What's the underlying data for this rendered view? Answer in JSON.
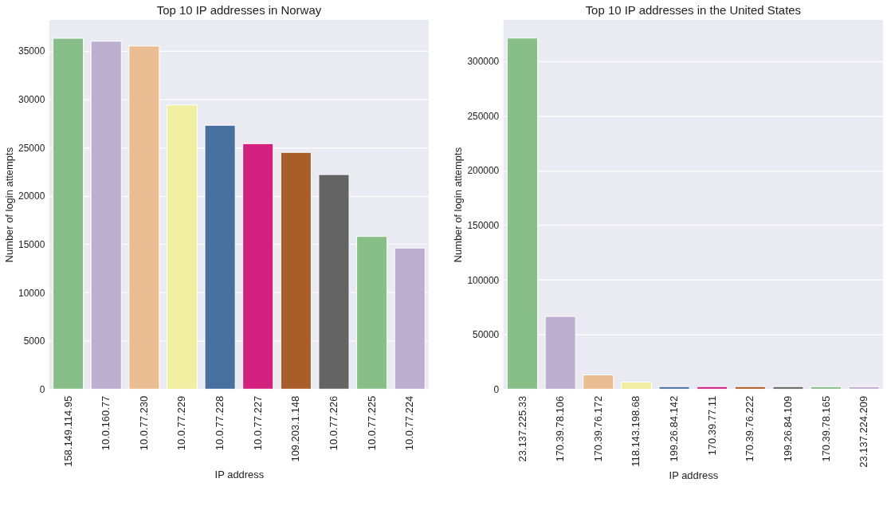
{
  "chart_data": [
    {
      "type": "bar",
      "title": "Top 10 IP addresses in Norway",
      "xlabel": "IP address",
      "ylabel": "Number of login attempts",
      "categories": [
        "158.149.114.95",
        "10.0.160.77",
        "10.0.77.230",
        "10.0.77.229",
        "10.0.77.228",
        "10.0.77.227",
        "109.203.1.148",
        "10.0.77.226",
        "10.0.77.225",
        "10.0.77.224"
      ],
      "values": [
        36300,
        36000,
        35500,
        29400,
        27300,
        25400,
        24500,
        22200,
        15800,
        14600
      ],
      "colors": [
        "#88bf88",
        "#bdafcf",
        "#eabe92",
        "#f0efa2",
        "#476fa0",
        "#d31f7d",
        "#a95d28",
        "#646464",
        "#88bf88",
        "#bdafcf"
      ],
      "ylim": [
        0,
        38200
      ],
      "yticks": [
        0,
        5000,
        10000,
        15000,
        20000,
        25000,
        30000,
        35000
      ],
      "grid": "y"
    },
    {
      "type": "bar",
      "title": "Top 10 IP addresses in the United States",
      "xlabel": "IP address",
      "ylabel": "Number of login attempts",
      "categories": [
        "23.137.225.33",
        "170.39.78.106",
        "170.39.76.172",
        "118.143.198.68",
        "199.26.84.142",
        "170.39.77.11",
        "170.39.76.222",
        "199.26.84.109",
        "170.39.78.165",
        "23.137.224.209"
      ],
      "values": [
        321000,
        66500,
        13000,
        6400,
        2300,
        2300,
        2300,
        2300,
        2300,
        2300
      ],
      "colors": [
        "#88bf88",
        "#bdafcf",
        "#eabe92",
        "#f0efa2",
        "#476fa0",
        "#d31f7d",
        "#a95d28",
        "#646464",
        "#88bf88",
        "#bdafcf"
      ],
      "ylim": [
        0,
        337600
      ],
      "yticks": [
        0,
        50000,
        100000,
        150000,
        200000,
        250000,
        300000
      ],
      "grid": "y"
    }
  ]
}
